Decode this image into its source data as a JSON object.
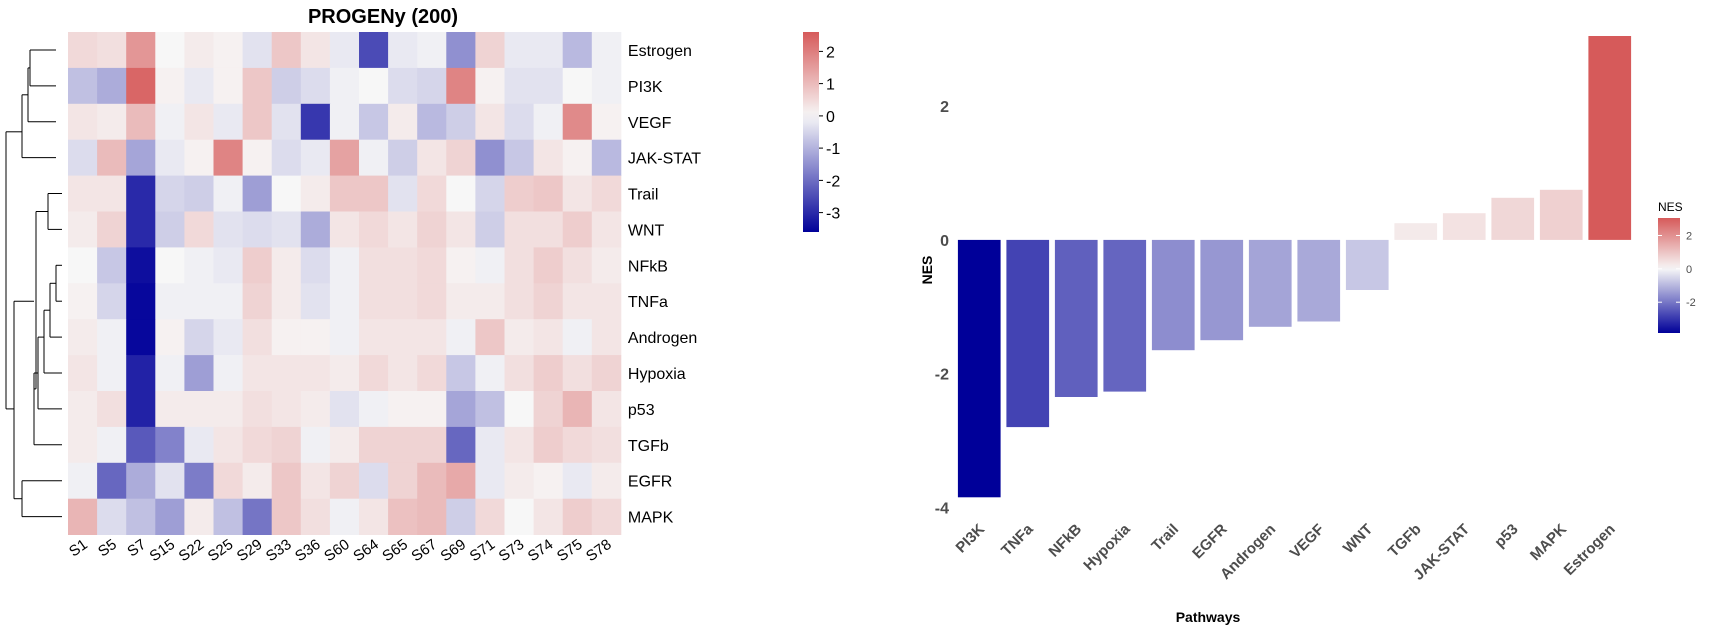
{
  "chart_data": [
    {
      "type": "heatmap",
      "title": "PROGENy (200)",
      "rows": [
        "Estrogen",
        "PI3K",
        "VEGF",
        "JAK-STAT",
        "Trail",
        "WNT",
        "NFkB",
        "TNFa",
        "Androgen",
        "Hypoxia",
        "p53",
        "TGFb",
        "EGFR",
        "MAPK"
      ],
      "columns": [
        "S1",
        "S5",
        "S7",
        "S15",
        "S22",
        "S25",
        "S29",
        "S33",
        "S36",
        "S60",
        "S64",
        "S65",
        "S67",
        "S69",
        "S71",
        "S73",
        "S74",
        "S75",
        "S78"
      ],
      "values": [
        [
          0.5,
          0.4,
          1.6,
          0,
          0.2,
          0.1,
          -0.3,
          0.8,
          0.3,
          -0.2,
          -2.5,
          -0.2,
          -0.1,
          -1.5,
          0.6,
          -0.2,
          -0.2,
          -0.9,
          -0.1
        ],
        [
          -0.8,
          -1.1,
          2.4,
          0.1,
          -0.2,
          0.1,
          0.8,
          -0.6,
          -0.4,
          -0.1,
          0,
          -0.4,
          -0.5,
          1.9,
          0.1,
          -0.3,
          -0.3,
          0,
          -0.1
        ],
        [
          0.3,
          0.2,
          1.0,
          -0.1,
          0.3,
          -0.2,
          0.8,
          -0.3,
          -2.8,
          -0.1,
          -0.7,
          0.2,
          -0.9,
          -0.6,
          0.3,
          -0.4,
          -0.1,
          1.8,
          0.1
        ],
        [
          -0.4,
          1.0,
          -1.2,
          -0.2,
          0.1,
          1.9,
          0.1,
          -0.4,
          -0.2,
          1.4,
          -0.1,
          -0.6,
          0.3,
          0.6,
          -1.5,
          -0.7,
          0.3,
          0.1,
          -0.9
        ],
        [
          0.3,
          0.3,
          -3.0,
          -0.5,
          -0.6,
          -0.1,
          -1.3,
          0,
          0.2,
          0.8,
          0.8,
          -0.3,
          0.5,
          0,
          -0.5,
          0.7,
          0.8,
          0.3,
          0.5
        ],
        [
          0.2,
          0.6,
          -3.0,
          -0.6,
          0.5,
          -0.3,
          -0.4,
          -0.3,
          -1.1,
          0.3,
          0.5,
          0.3,
          0.6,
          0.3,
          -0.6,
          0.4,
          0.4,
          0.7,
          0.3
        ],
        [
          0,
          -0.7,
          -3.4,
          0,
          -0.1,
          -0.2,
          0.7,
          0.2,
          -0.4,
          -0.1,
          0.4,
          0.4,
          0.5,
          0.1,
          -0.1,
          0.4,
          0.7,
          0.4,
          0.2
        ],
        [
          0.1,
          -0.5,
          -3.5,
          -0.1,
          -0.1,
          -0.1,
          0.6,
          0.2,
          -0.3,
          -0.1,
          0.4,
          0.4,
          0.5,
          0.2,
          0.2,
          0.4,
          0.6,
          0.3,
          0.3
        ],
        [
          0.2,
          -0.1,
          -3.5,
          0.1,
          -0.5,
          -0.2,
          0.4,
          0.1,
          0.1,
          -0.1,
          0.3,
          0.3,
          0.3,
          -0.1,
          0.8,
          0.2,
          0.3,
          -0.1,
          0.3
        ],
        [
          0.3,
          -0.1,
          -3.1,
          -0.1,
          -1.3,
          -0.1,
          0.3,
          0.3,
          0.3,
          0.2,
          0.5,
          0.3,
          0.5,
          -0.7,
          -0.1,
          0.4,
          0.7,
          0.4,
          0.6
        ],
        [
          0.2,
          0.4,
          -3.1,
          0.2,
          0.2,
          0.2,
          0.4,
          0.3,
          0.2,
          -0.3,
          -0.1,
          0.1,
          0.1,
          -1.2,
          -0.8,
          0,
          0.6,
          1.1,
          0.3
        ],
        [
          0.2,
          -0.1,
          -2.3,
          -1.7,
          -0.2,
          0.3,
          0.5,
          0.6,
          -0.1,
          0.2,
          0.6,
          0.6,
          0.6,
          -2.1,
          -0.2,
          0.3,
          0.7,
          0.5,
          0.4
        ],
        [
          -0.1,
          -2.1,
          -1.1,
          -0.3,
          -1.8,
          0.5,
          0.2,
          0.8,
          0.3,
          0.6,
          -0.4,
          0.6,
          1.0,
          1.3,
          -0.2,
          0.2,
          0.1,
          -0.2,
          0.2
        ],
        [
          1.1,
          -0.4,
          -0.8,
          -1.3,
          0.2,
          -0.8,
          -1.9,
          0.8,
          0.4,
          -0.1,
          0.3,
          0.9,
          1.0,
          -0.6,
          0.5,
          0,
          0.3,
          0.7,
          0.5
        ]
      ],
      "legend_ticks": [
        "2",
        "1",
        "0",
        "-1",
        "-2",
        "-3"
      ],
      "legend_range": [
        -3.6,
        2.6
      ],
      "colors": {
        "low": "#000099",
        "mid": "#f7f7f7",
        "high": "#d65a5a"
      }
    },
    {
      "type": "bar",
      "categories": [
        "PI3K",
        "TNFa",
        "NFkB",
        "Hypoxia",
        "Trail",
        "EGFR",
        "Androgen",
        "VEGF",
        "WNT",
        "TGFb",
        "JAK-STAT",
        "p53",
        "MAPK",
        "Estrogen"
      ],
      "values": [
        -3.85,
        -2.8,
        -2.35,
        -2.27,
        -1.65,
        -1.5,
        -1.3,
        -1.22,
        -0.75,
        0.25,
        0.4,
        0.63,
        0.75,
        3.05
      ],
      "xlabel": "Pathways",
      "ylabel": "NES",
      "ylim": [
        -4.1,
        3.2
      ],
      "yticks": [
        2,
        0,
        -2,
        -4
      ],
      "legend": {
        "title": "NES",
        "ticks": [
          2,
          0,
          -2
        ],
        "range": [
          -3.85,
          3.05
        ]
      },
      "colors": {
        "low": "#000099",
        "mid": "#f7f7f7",
        "high": "#d65a5a"
      }
    }
  ]
}
